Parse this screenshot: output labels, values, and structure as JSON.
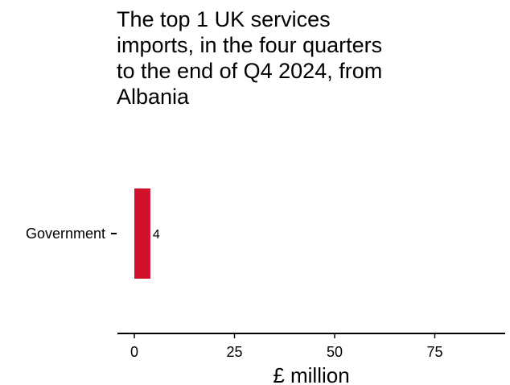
{
  "chart_data": {
    "type": "bar",
    "orientation": "horizontal",
    "title": "The top 1 UK services imports, in the four quarters to the end of Q4 2024, from Albania",
    "categories": [
      "Government"
    ],
    "values": [
      4
    ],
    "data_labels": [
      "4"
    ],
    "xlabel": "£ million",
    "ylabel": "",
    "xlim": [
      0,
      92
    ],
    "x_ticks": [
      0,
      25,
      50,
      75
    ],
    "x_tick_labels": [
      "0",
      "25",
      "50",
      "75"
    ],
    "grid": false,
    "legend": "none",
    "bar_color": "#d0112b"
  }
}
